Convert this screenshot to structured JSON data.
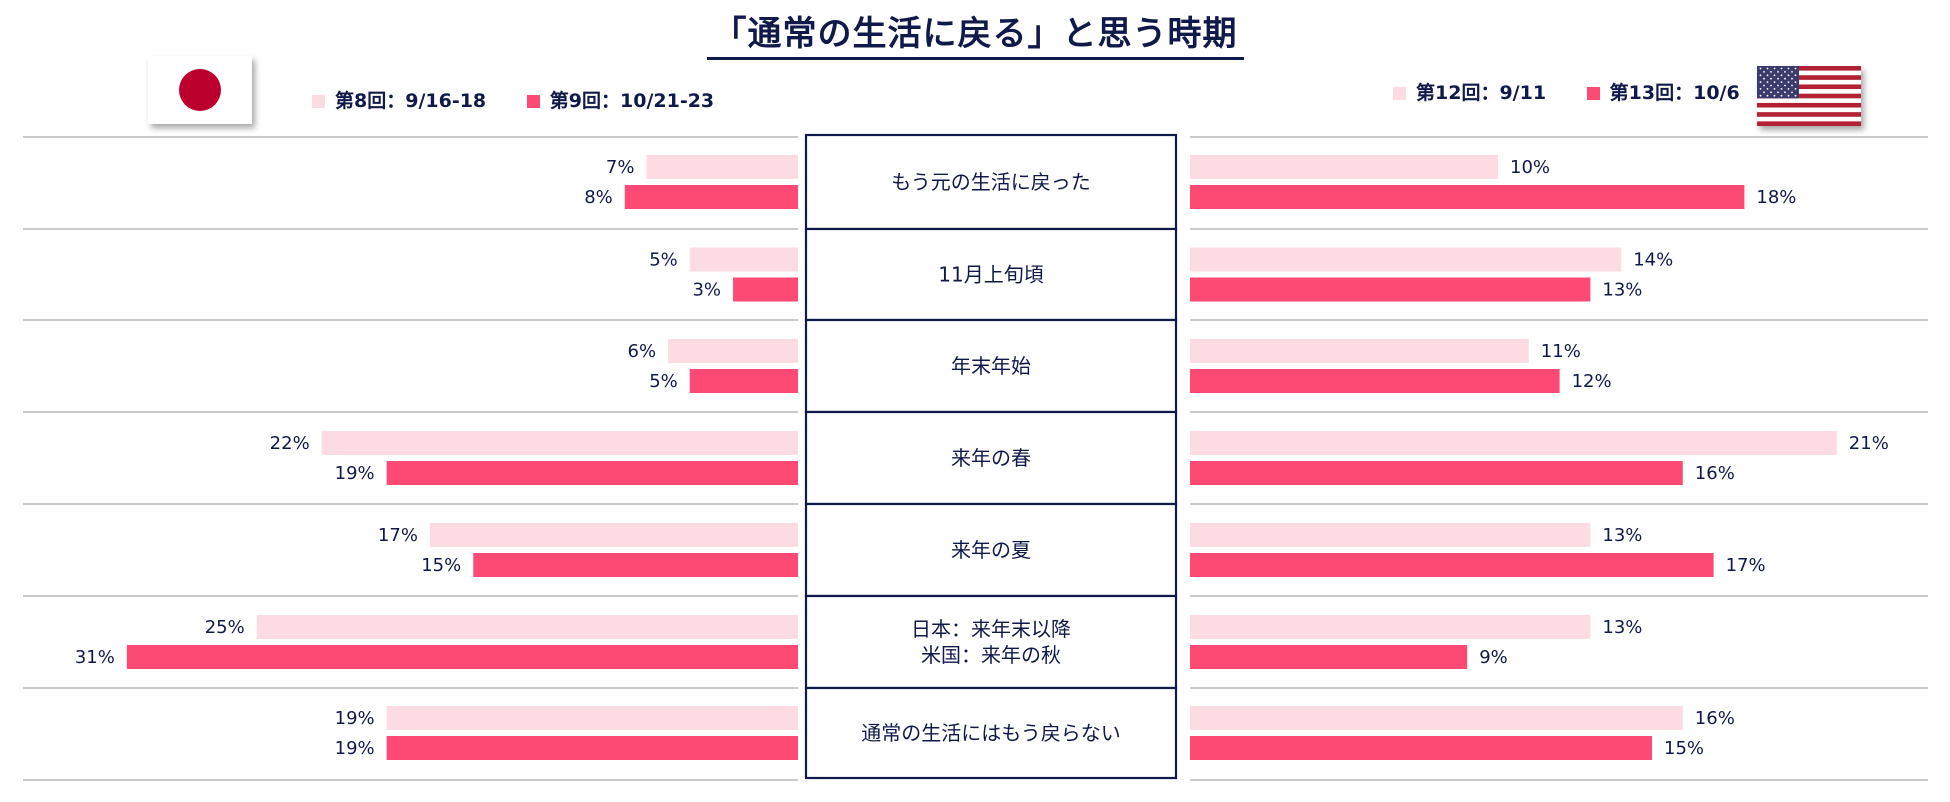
{
  "title": "「通常の生活に戻る」と思う時期",
  "colors": {
    "light": "#fddbe2",
    "dark": "#fd4a75",
    "text": "#0f1a4a",
    "line": "#b9b9b9",
    "border": "#0f1a4a"
  },
  "japan": {
    "flag_icon": "japan-flag-icon",
    "legend": [
      {
        "label": "第8回：9/16-18",
        "color": "#fddbe2"
      },
      {
        "label": "第9回：10/21-23",
        "color": "#fd4a75"
      }
    ]
  },
  "usa": {
    "flag_icon": "usa-flag-icon",
    "legend": [
      {
        "label": "第12回：9/11",
        "color": "#fddbe2"
      },
      {
        "label": "第13回：10/6",
        "color": "#fd4a75"
      }
    ]
  },
  "chart_data": {
    "type": "bar",
    "categories": [
      "もう元の生活に戻った",
      "11月上旬頃",
      "年末年始",
      "来年の春",
      "来年の夏",
      "日本：来年末以降\n米国：来年の秋",
      "通常の生活にはもう戻らない"
    ],
    "japan": {
      "series": [
        {
          "name": "第8回：9/16-18",
          "values": [
            7,
            5,
            6,
            22,
            17,
            25,
            19
          ]
        },
        {
          "name": "第9回：10/21-23",
          "values": [
            8,
            3,
            5,
            19,
            15,
            31,
            19
          ]
        }
      ]
    },
    "usa": {
      "series": [
        {
          "name": "第12回：9/11",
          "values": [
            10,
            14,
            11,
            21,
            13,
            13,
            16
          ]
        },
        {
          "name": "第13回：10/6",
          "values": [
            18,
            13,
            12,
            16,
            17,
            9,
            15
          ]
        }
      ]
    },
    "unit": "%"
  }
}
